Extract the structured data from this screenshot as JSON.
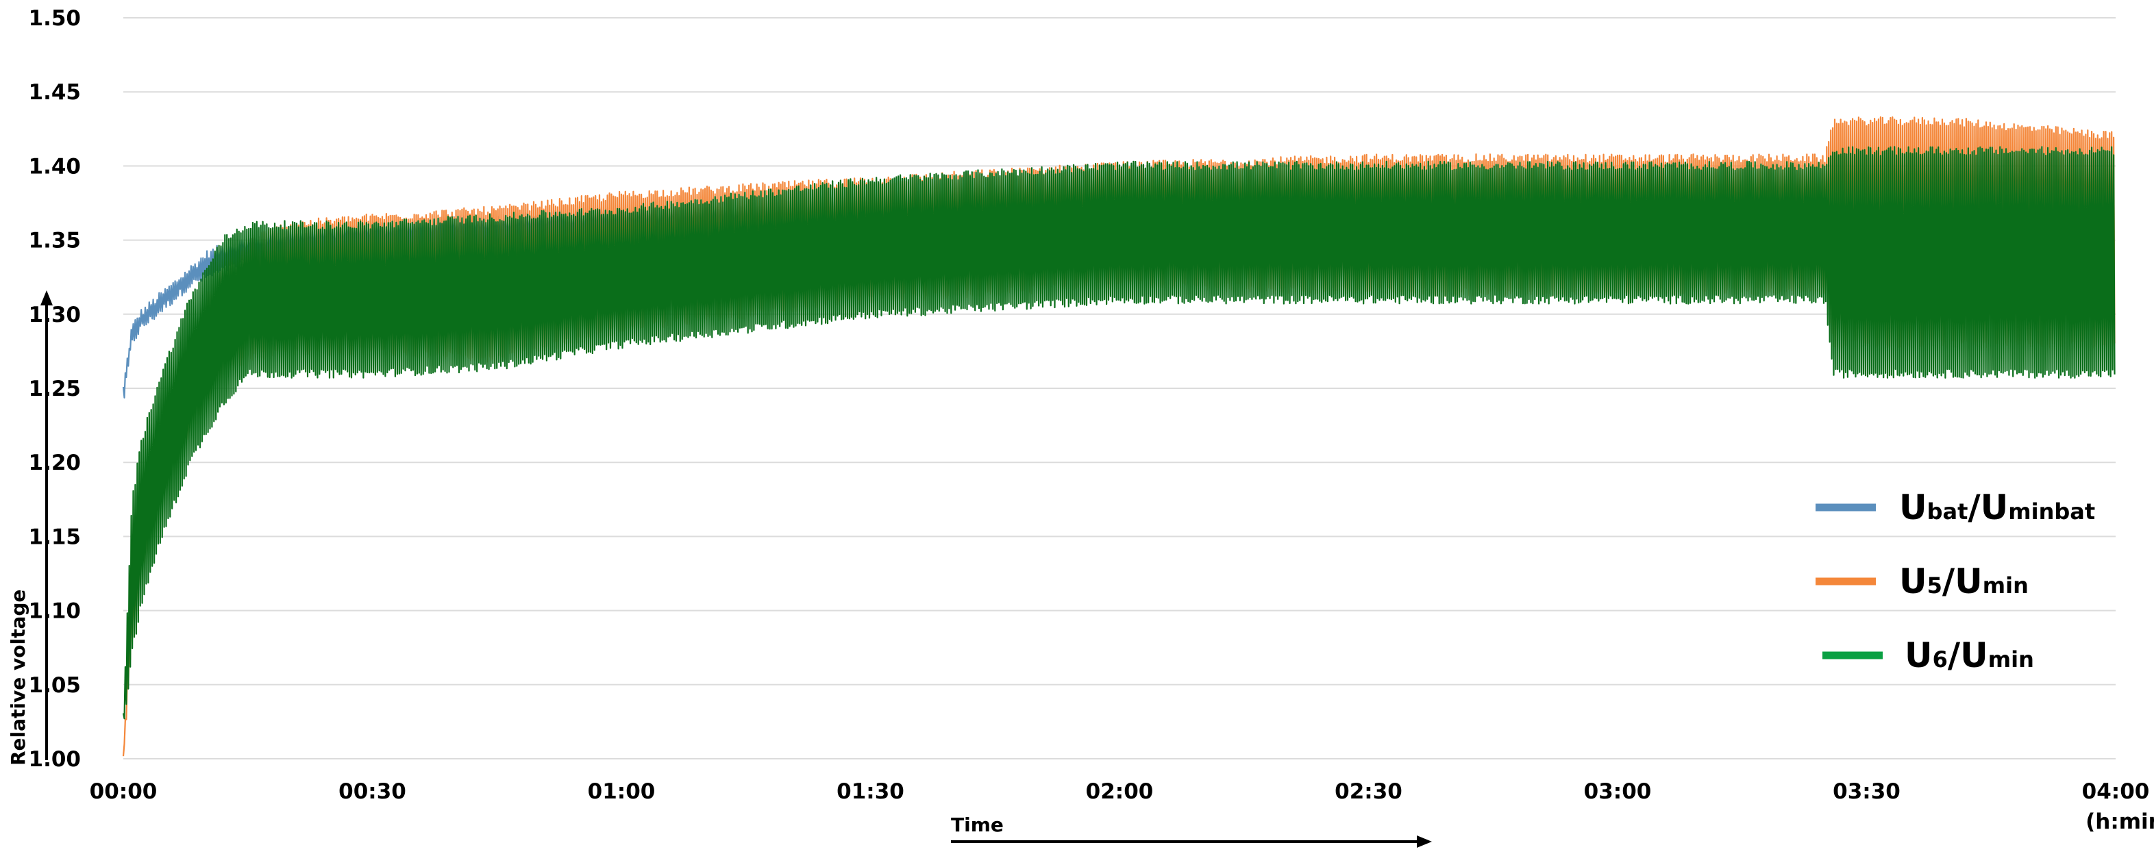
{
  "chart_data": {
    "type": "line",
    "title": "",
    "xlabel": "Time",
    "x_unit": "(h:min)",
    "ylabel": "Relative voltage",
    "ylim": [
      1.0,
      1.5
    ],
    "xlim_minutes": [
      0,
      240
    ],
    "y_ticks": [
      "1.00",
      "1.05",
      "1.10",
      "1.15",
      "1.20",
      "1.25",
      "1.30",
      "1.35",
      "1.40",
      "1.45",
      "1.50"
    ],
    "x_ticks": [
      "00:00",
      "00:30",
      "01:00",
      "01:30",
      "02:00",
      "02:30",
      "03:00",
      "03:30",
      "04:00"
    ],
    "grid": "horizontal",
    "legend_position": "right",
    "legend": [
      {
        "main": "U",
        "sub": "bat",
        "main2": "/U",
        "sub2": "minbat"
      },
      {
        "main": "U",
        "sub": "5",
        "main2": "/U",
        "sub2": "min"
      },
      {
        "main": "U",
        "sub": "6",
        "main2": "/U",
        "sub2": "min"
      }
    ],
    "series": [
      {
        "name": "Ubat/Uminbat",
        "color": "#5b8fbd",
        "envelope_minutes": [
          0,
          1,
          2,
          4,
          6,
          8,
          10,
          12,
          15,
          20,
          30,
          45,
          60,
          75,
          90,
          105,
          120,
          150,
          180,
          206
        ],
        "envelope_low": [
          1.24,
          1.28,
          1.29,
          1.3,
          1.31,
          1.32,
          1.325,
          1.33,
          1.335,
          1.335,
          1.34,
          1.345,
          1.345,
          1.35,
          1.35,
          1.35,
          1.35,
          1.35,
          1.35,
          1.35
        ],
        "envelope_high": [
          1.25,
          1.29,
          1.3,
          1.31,
          1.32,
          1.33,
          1.34,
          1.345,
          1.35,
          1.355,
          1.36,
          1.365,
          1.37,
          1.37,
          1.37,
          1.37,
          1.37,
          1.37,
          1.37,
          1.37
        ]
      },
      {
        "name": "U5/Umin",
        "color": "#f4873a",
        "envelope_minutes": [
          0,
          1,
          2,
          4,
          6,
          8,
          10,
          12,
          15,
          20,
          30,
          45,
          60,
          75,
          90,
          105,
          120,
          150,
          180,
          205,
          206,
          220,
          240
        ],
        "envelope_low": [
          1.0,
          1.08,
          1.12,
          1.17,
          1.2,
          1.22,
          1.24,
          1.26,
          1.27,
          1.275,
          1.275,
          1.27,
          1.29,
          1.3,
          1.31,
          1.315,
          1.32,
          1.315,
          1.315,
          1.315,
          1.28,
          1.28,
          1.28
        ],
        "envelope_high": [
          1.0,
          1.12,
          1.16,
          1.21,
          1.25,
          1.28,
          1.31,
          1.33,
          1.35,
          1.36,
          1.365,
          1.37,
          1.38,
          1.385,
          1.39,
          1.395,
          1.4,
          1.405,
          1.405,
          1.405,
          1.43,
          1.43,
          1.42
        ]
      },
      {
        "name": "U6/Umin",
        "color": "#0a6e1a",
        "envelope_minutes": [
          0,
          1,
          2,
          4,
          6,
          8,
          10,
          12,
          15,
          20,
          30,
          45,
          60,
          75,
          90,
          105,
          120,
          150,
          180,
          205,
          206,
          220,
          240
        ],
        "envelope_low": [
          1.02,
          1.07,
          1.1,
          1.14,
          1.17,
          1.2,
          1.22,
          1.24,
          1.26,
          1.26,
          1.26,
          1.265,
          1.28,
          1.29,
          1.3,
          1.305,
          1.31,
          1.31,
          1.31,
          1.31,
          1.26,
          1.26,
          1.26
        ],
        "envelope_high": [
          1.03,
          1.17,
          1.21,
          1.25,
          1.28,
          1.31,
          1.33,
          1.35,
          1.36,
          1.36,
          1.36,
          1.365,
          1.37,
          1.38,
          1.39,
          1.395,
          1.4,
          1.4,
          1.4,
          1.4,
          1.41,
          1.41,
          1.41
        ]
      }
    ]
  }
}
